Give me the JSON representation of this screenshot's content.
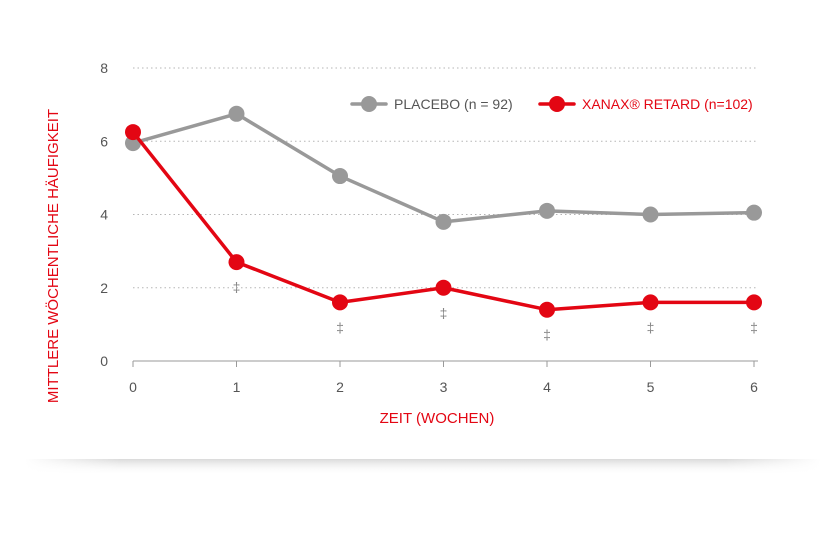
{
  "chart_data": {
    "type": "line",
    "title": "",
    "xlabel": "ZEIT (WOCHEN)",
    "ylabel": "MITTLERE WÖCHENTLICHE HÄUFIGKEIT",
    "x": [
      0,
      1,
      2,
      3,
      4,
      5,
      6
    ],
    "x_ticks": [
      "0",
      "1",
      "2",
      "3",
      "4",
      "5",
      "6"
    ],
    "y_ticks": [
      "0",
      "2",
      "4",
      "6",
      "8"
    ],
    "xlim": [
      0,
      6
    ],
    "ylim": [
      0,
      8
    ],
    "grid": "horizontal dotted",
    "legend_position": "top-right",
    "series": [
      {
        "name": "PLACEBO (n = 92)",
        "color": "#999999",
        "values": [
          5.95,
          6.75,
          5.05,
          3.8,
          4.1,
          4.0,
          4.05
        ]
      },
      {
        "name": "XANAX® RETARD (n=102)",
        "color": "#e30613",
        "values": [
          6.25,
          2.7,
          1.6,
          2.0,
          1.4,
          1.6,
          1.6
        ]
      }
    ],
    "significance_marker": "‡",
    "significance_series": 1,
    "significance_x": [
      1,
      2,
      3,
      4,
      5,
      6
    ]
  }
}
